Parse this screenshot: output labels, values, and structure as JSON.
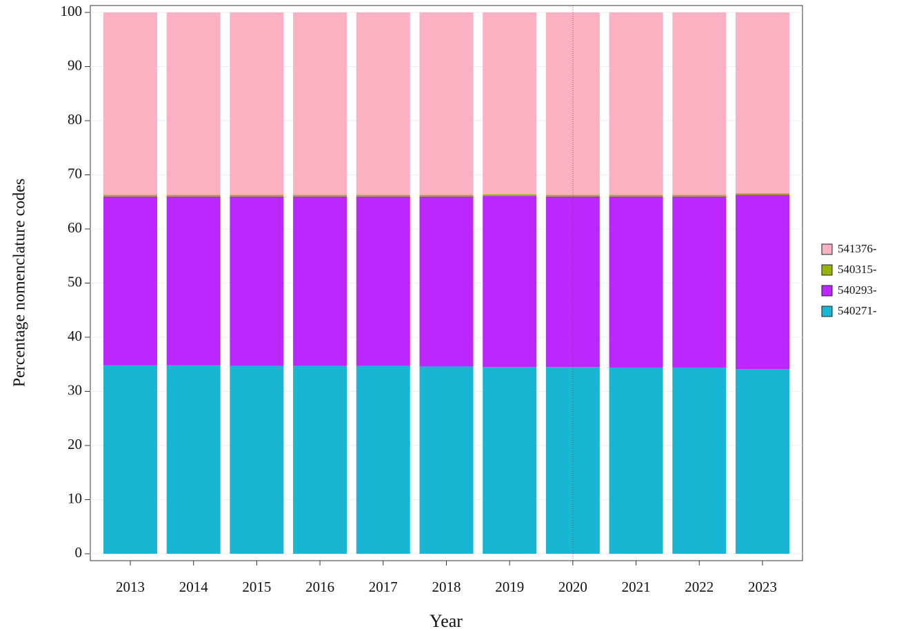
{
  "chart_data": {
    "type": "stacked-bar",
    "x_label": "Year",
    "y_label": "Percentage nomenclature codes",
    "categories": [
      "2013",
      "2014",
      "2015",
      "2016",
      "2017",
      "2018",
      "2019",
      "2020",
      "2021",
      "2022",
      "2023"
    ],
    "series": [
      {
        "name": "540271-",
        "color": "#19b6d3",
        "values": [
          34.8,
          34.8,
          34.7,
          34.7,
          34.7,
          34.6,
          34.5,
          34.5,
          34.4,
          34.4,
          34.1
        ]
      },
      {
        "name": "540293-",
        "color": "#bb27fd",
        "values": [
          31.2,
          31.2,
          31.3,
          31.3,
          31.3,
          31.4,
          31.6,
          31.5,
          31.6,
          31.6,
          32.2
        ]
      },
      {
        "name": "540315-",
        "color": "#96b605",
        "values": [
          0.3,
          0.3,
          0.3,
          0.3,
          0.3,
          0.3,
          0.3,
          0.3,
          0.3,
          0.3,
          0.3
        ]
      },
      {
        "name": "541376-",
        "color": "#fcb1c3",
        "values": [
          33.7,
          33.7,
          33.7,
          33.7,
          33.7,
          33.7,
          33.6,
          33.7,
          33.7,
          33.7,
          33.4
        ]
      }
    ],
    "ylim": [
      0,
      100
    ],
    "yticks": [
      0,
      10,
      20,
      30,
      40,
      50,
      60,
      70,
      80,
      90,
      100
    ],
    "grid": true
  }
}
